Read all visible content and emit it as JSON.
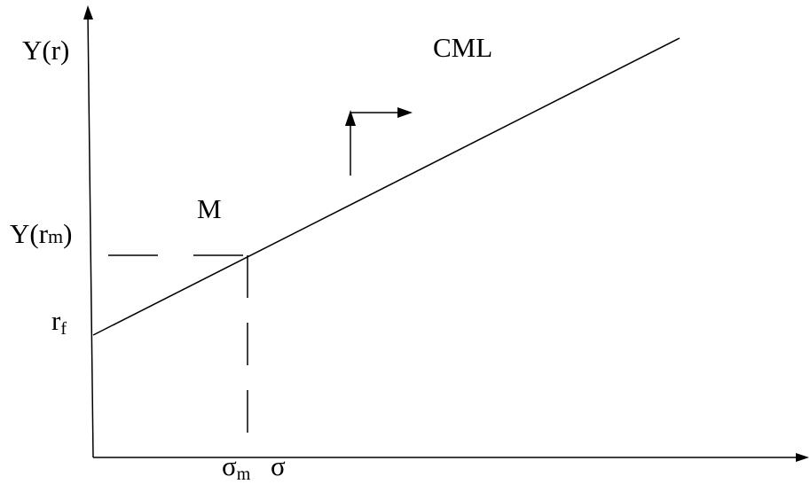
{
  "labels": {
    "y_axis": {
      "base": "Y(r)"
    },
    "cml": "CML",
    "market_portfolio": "M",
    "y_rm": {
      "prefix": "Y(r",
      "sub": "m",
      "suffix": ")"
    },
    "rf": {
      "base": "r",
      "sub": "f"
    },
    "sigma_m": {
      "base": "σ",
      "sub": "m"
    },
    "sigma": "σ"
  },
  "colors": {
    "line": "#000000",
    "background": "#ffffff"
  }
}
